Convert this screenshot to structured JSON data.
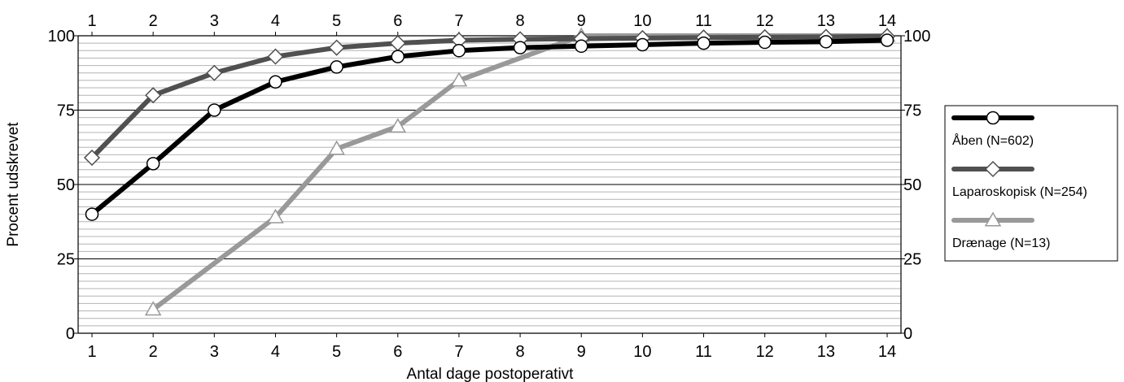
{
  "chart_data": {
    "type": "line",
    "title": "",
    "xlabel": "Antal dage postoperativt",
    "ylabel": "Procent udskrevet",
    "x": [
      1,
      2,
      3,
      4,
      5,
      6,
      7,
      8,
      9,
      10,
      11,
      12,
      13,
      14
    ],
    "xlim": [
      1,
      14
    ],
    "ylim": [
      0,
      100
    ],
    "y_ticks": [
      0,
      25,
      50,
      75,
      100
    ],
    "grid": true,
    "legend_position": "right",
    "series": [
      {
        "name": "Åben (N=602)",
        "marker": "circle",
        "color": "#000000",
        "x": [
          1,
          2,
          3,
          4,
          5,
          6,
          7,
          8,
          9,
          10,
          11,
          12,
          13,
          14
        ],
        "values": [
          40,
          57,
          75,
          84.5,
          89.5,
          93,
          95,
          96,
          96.5,
          97,
          97.5,
          97.8,
          98,
          98.5
        ]
      },
      {
        "name": "Laparoskopisk (N=254)",
        "marker": "diamond",
        "color": "#505050",
        "x": [
          1,
          2,
          3,
          4,
          5,
          6,
          7,
          8,
          9,
          10,
          11,
          12,
          13,
          14
        ],
        "values": [
          59,
          80,
          87.5,
          93,
          96,
          97.5,
          98.5,
          98.8,
          99,
          99.2,
          99.4,
          99.5,
          99.6,
          99.8
        ]
      },
      {
        "name": "Drænage (N=13)",
        "marker": "triangle",
        "color": "#999999",
        "x": [
          2,
          4,
          5,
          6,
          7,
          9,
          10,
          11,
          12,
          13,
          14
        ],
        "values": [
          8,
          39,
          62,
          69.5,
          85,
          100,
          100,
          100,
          100,
          100,
          100
        ]
      }
    ]
  }
}
